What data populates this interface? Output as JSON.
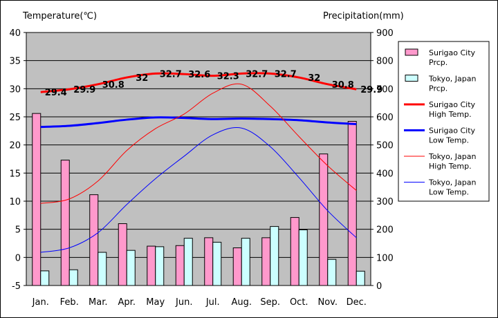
{
  "chart_data": {
    "type": "bar-line-combo",
    "categories": [
      "Jan.",
      "Feb.",
      "Mar.",
      "Apr.",
      "May",
      "Jun.",
      "Jul.",
      "Aug.",
      "Sep.",
      "Oct.",
      "Nov.",
      "Dec."
    ],
    "y_left": {
      "label": "Temperature(℃)",
      "range": [
        -5,
        40
      ],
      "ticks": [
        -5,
        0,
        5,
        10,
        15,
        20,
        25,
        30,
        35,
        40
      ]
    },
    "y_right": {
      "label": "Precipitation(mm)",
      "range": [
        0,
        900
      ],
      "ticks": [
        0,
        100,
        200,
        300,
        400,
        500,
        600,
        700,
        800,
        900
      ]
    },
    "grid": true,
    "legend_position": "right",
    "series": [
      {
        "name": "Surigao City Prcp.",
        "legend": [
          "Surigao City",
          "Prcp."
        ],
        "kind": "bar",
        "axis": "right",
        "color": "#ff99cc",
        "values": [
          612,
          446,
          323,
          220,
          140,
          142,
          170,
          134,
          170,
          242,
          468,
          584
        ]
      },
      {
        "name": "Tokyo, Japan Prcp.",
        "legend": [
          "Tokyo, Japan",
          "Prcp."
        ],
        "kind": "bar",
        "axis": "right",
        "color": "#ccffff",
        "values": [
          52,
          56,
          118,
          125,
          138,
          168,
          154,
          168,
          210,
          198,
          93,
          51
        ]
      },
      {
        "name": "Surigao City High Temp.",
        "legend": [
          "Surigao City",
          "High Temp."
        ],
        "kind": "line",
        "axis": "left",
        "color": "#ff0000",
        "width": 3,
        "values": [
          29.4,
          29.9,
          30.8,
          32.0,
          32.7,
          32.6,
          32.3,
          32.7,
          32.7,
          32.0,
          30.8,
          29.9
        ],
        "labels": [
          "29.4",
          "29.9",
          "30.8",
          "32",
          "32.7",
          "32.6",
          "32.3",
          "32.7",
          "32.7",
          "32",
          "30.8",
          "29.9"
        ]
      },
      {
        "name": "Surigao City Low Temp.",
        "legend": [
          "Surigao City",
          "Low Temp."
        ],
        "kind": "line",
        "axis": "left",
        "color": "#0000ff",
        "width": 3,
        "values": [
          23.2,
          23.4,
          23.9,
          24.5,
          24.9,
          24.8,
          24.6,
          24.7,
          24.6,
          24.4,
          24.0,
          23.7
        ]
      },
      {
        "name": "Tokyo, Japan High Temp.",
        "legend": [
          "Tokyo, Japan",
          "High Temp."
        ],
        "kind": "line",
        "axis": "left",
        "color": "#ff0000",
        "width": 1,
        "values": [
          9.6,
          10.4,
          13.6,
          19.0,
          22.9,
          25.5,
          29.2,
          30.8,
          26.9,
          21.5,
          16.3,
          11.9
        ]
      },
      {
        "name": "Tokyo, Japan Low Temp.",
        "legend": [
          "Tokyo, Japan",
          "Low Temp."
        ],
        "kind": "line",
        "axis": "left",
        "color": "#0000ff",
        "width": 1,
        "values": [
          0.9,
          1.7,
          4.4,
          9.4,
          14.0,
          18.0,
          21.8,
          23.0,
          19.7,
          14.2,
          8.3,
          3.5
        ]
      }
    ]
  }
}
